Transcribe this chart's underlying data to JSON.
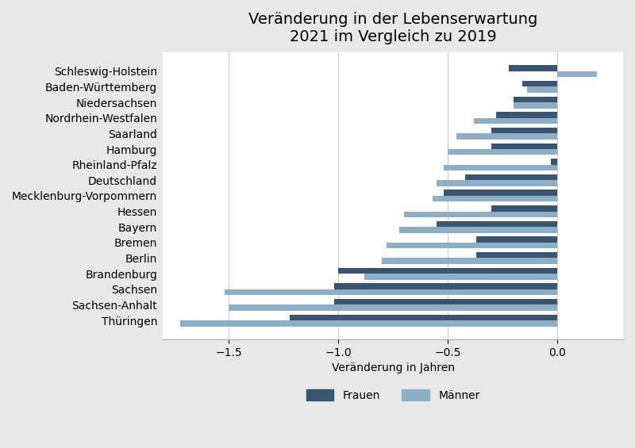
{
  "title": "Veränderung in der Lebenserwartung\n2021 im Vergleich zu 2019",
  "xlabel": "Veränderung in Jahren",
  "categories": [
    "Schleswig-Holstein",
    "Baden-Württemberg",
    "Niedersachsen",
    "Nordrhein-Westfalen",
    "Saarland",
    "Hamburg",
    "Rheinland-Pfalz",
    "Deutschland",
    "Mecklenburg-Vorpommern",
    "Hessen",
    "Bayern",
    "Bremen",
    "Berlin",
    "Brandenburg",
    "Sachsen",
    "Sachsen-Anhalt",
    "Thüringen"
  ],
  "frauen": [
    -0.22,
    -0.16,
    -0.2,
    -0.28,
    -0.3,
    -0.3,
    -0.03,
    -0.42,
    -0.52,
    -0.3,
    -0.55,
    -0.37,
    -0.37,
    -1.0,
    -1.02,
    -1.02,
    -1.22
  ],
  "maenner": [
    0.18,
    -0.14,
    -0.2,
    -0.38,
    -0.46,
    -0.5,
    -0.52,
    -0.55,
    -0.57,
    -0.7,
    -0.72,
    -0.78,
    -0.8,
    -0.88,
    -1.52,
    -1.5,
    -1.72
  ],
  "color_frauen": "#3a5570",
  "color_maenner": "#8eaec5",
  "background_color": "#ffffff",
  "plot_bg_color": "#ffffff",
  "fig_bg_color": "#e8e8e8",
  "xlim": [
    -1.8,
    0.3
  ],
  "xticks": [
    -1.5,
    -1.0,
    -0.5,
    0.0
  ],
  "title_fontsize": 14,
  "label_fontsize": 10,
  "tick_fontsize": 10
}
